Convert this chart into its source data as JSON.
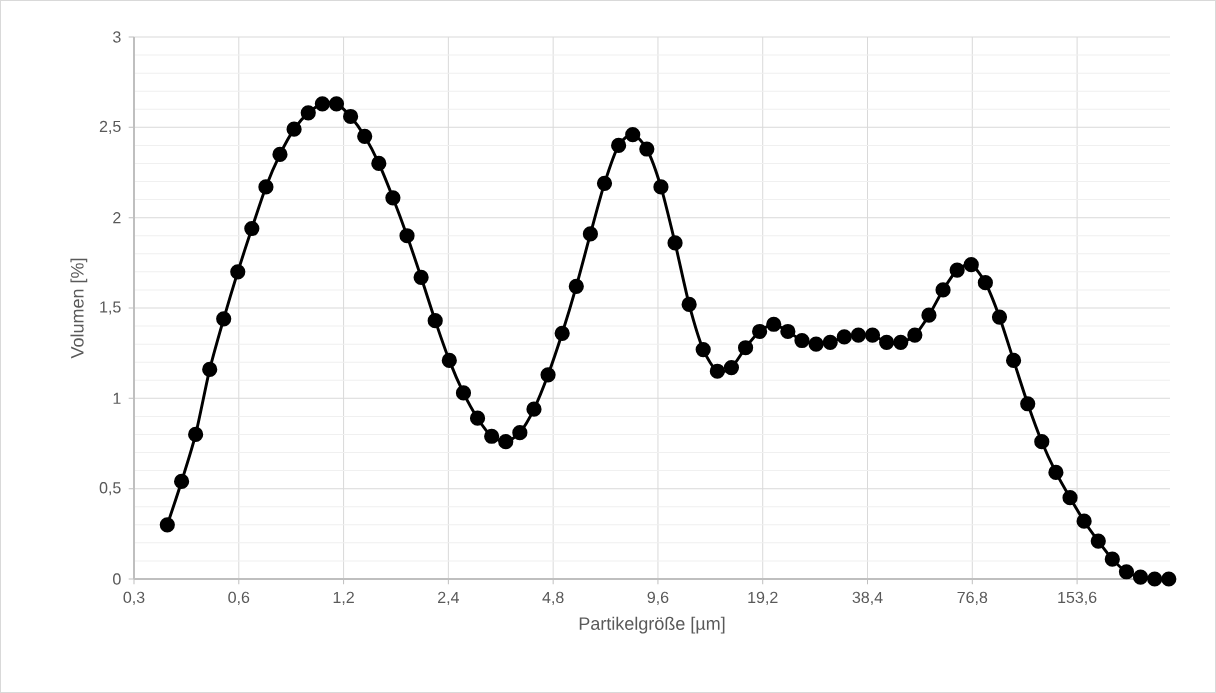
{
  "chart_data": {
    "type": "line",
    "xlabel": "Partikelgröße [µm]",
    "ylabel": "Volumen [%]",
    "log": "x",
    "grid": true,
    "marker": "circle",
    "line_style": "solid",
    "legend": false,
    "xlim": [
      0.3,
      284
    ],
    "ylim": [
      0,
      3
    ],
    "xticks": [
      {
        "value": 0.3,
        "label": "0,3"
      },
      {
        "value": 0.6,
        "label": "0,6"
      },
      {
        "value": 1.2,
        "label": "1,2"
      },
      {
        "value": 2.4,
        "label": "2,4"
      },
      {
        "value": 4.8,
        "label": "4,8"
      },
      {
        "value": 9.6,
        "label": "9,6"
      },
      {
        "value": 19.2,
        "label": "19,2"
      },
      {
        "value": 38.4,
        "label": "38,4"
      },
      {
        "value": 76.8,
        "label": "76,8"
      },
      {
        "value": 153.6,
        "label": "153,6"
      }
    ],
    "yticks": [
      0,
      {
        "value": 0.5,
        "label": "0,5"
      },
      1,
      {
        "value": 1.5,
        "label": "1,5"
      },
      2,
      {
        "value": 2.5,
        "label": "2,5"
      },
      3
    ],
    "series": [
      {
        "color": "#000000",
        "x": [
          0.374,
          0.411,
          0.451,
          0.495,
          0.543,
          0.596,
          0.654,
          0.718,
          0.788,
          0.865,
          0.95,
          1.043,
          1.145,
          1.257,
          1.38,
          1.515,
          1.663,
          1.826,
          2.004,
          2.2,
          2.415,
          2.652,
          2.911,
          3.196,
          3.508,
          3.851,
          4.228,
          4.641,
          5.095,
          5.594,
          6.141,
          6.741,
          7.401,
          8.125,
          8.919,
          9.792,
          10.75,
          11.8,
          12.95,
          14.22,
          15.61,
          17.14,
          18.81,
          20.65,
          22.67,
          24.89,
          27.33,
          30.0,
          32.93,
          36.15,
          39.69,
          43.57,
          47.83,
          52.51,
          57.65,
          63.29,
          69.48,
          76.27,
          83.73,
          91.92,
          100.9,
          110.8,
          121.6,
          133.5,
          146.6,
          160.9,
          176.7,
          193.9,
          212.9,
          233.7,
          256.6,
          281.7
        ],
        "values": [
          0.3,
          0.54,
          0.8,
          1.16,
          1.44,
          1.7,
          1.94,
          2.17,
          2.35,
          2.49,
          2.58,
          2.63,
          2.63,
          2.56,
          2.45,
          2.3,
          2.11,
          1.9,
          1.67,
          1.43,
          1.21,
          1.03,
          0.89,
          0.79,
          0.76,
          0.81,
          0.94,
          1.13,
          1.36,
          1.62,
          1.91,
          2.19,
          2.4,
          2.46,
          2.38,
          2.17,
          1.86,
          1.52,
          1.27,
          1.15,
          1.17,
          1.28,
          1.37,
          1.41,
          1.37,
          1.32,
          1.3,
          1.31,
          1.34,
          1.35,
          1.35,
          1.31,
          1.31,
          1.35,
          1.46,
          1.6,
          1.71,
          1.74,
          1.64,
          1.45,
          1.21,
          0.97,
          0.76,
          0.59,
          0.45,
          0.32,
          0.21,
          0.11,
          0.04,
          0.01,
          0.0,
          0.0
        ]
      }
    ]
  }
}
